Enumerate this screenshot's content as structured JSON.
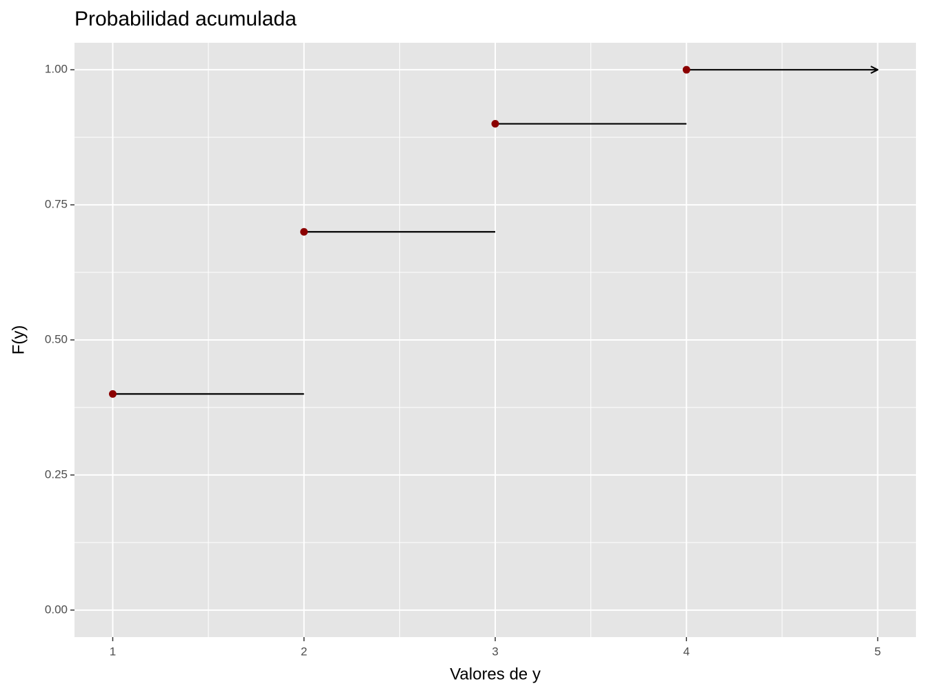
{
  "chart_data": {
    "type": "step",
    "title": "Probabilidad acumulada",
    "x_label": "Valores de y",
    "y_label": "F(y)",
    "x": [
      1,
      2,
      3,
      4
    ],
    "xend": [
      2,
      3,
      4,
      5
    ],
    "values": [
      0.4,
      0.7,
      0.9,
      1.0
    ],
    "point_color": "#8b0000",
    "line_color": "#000000",
    "arrow_last": true,
    "xlim": [
      0.8,
      5.2
    ],
    "ylim": [
      -0.05,
      1.05
    ],
    "xticks": [
      1,
      2,
      3,
      4,
      5
    ],
    "yticks": [
      {
        "value": 0,
        "label": "0.00"
      },
      {
        "value": 0.25,
        "label": "0.25"
      },
      {
        "value": 0.5,
        "label": "0.50"
      },
      {
        "value": 0.75,
        "label": "0.75"
      },
      {
        "value": 1,
        "label": "1.00"
      }
    ],
    "grid": true
  }
}
